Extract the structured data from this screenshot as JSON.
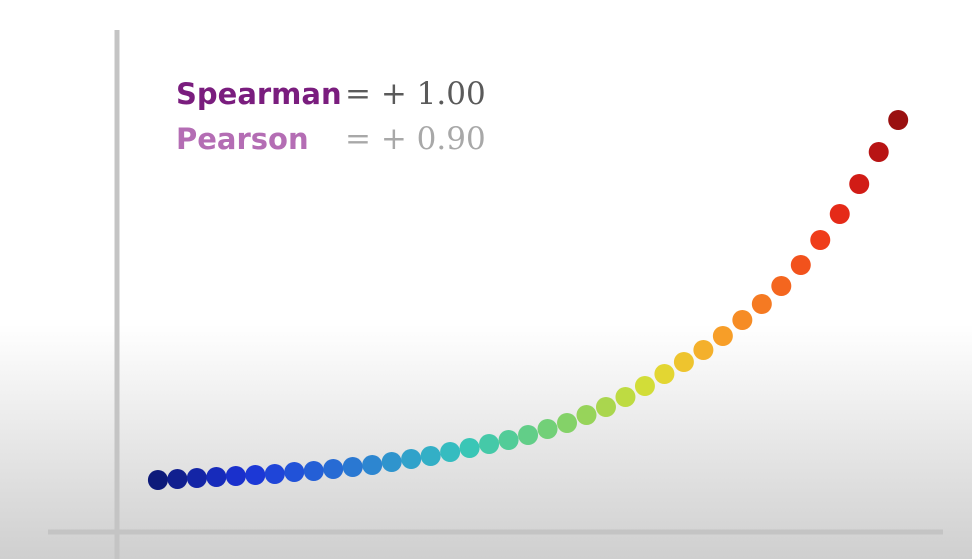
{
  "chart_data": {
    "type": "scatter",
    "annotations": [
      {
        "label": "Spearman",
        "text": "= + 1.00",
        "label_color": "#7a1d7e",
        "text_color": "#5a5a5a"
      },
      {
        "label": "Pearson",
        "text": "= + 0.90",
        "label_color": "#b46db4",
        "text_color": "#a8a8a8"
      }
    ],
    "x": [
      0,
      1,
      2,
      3,
      4,
      5,
      6,
      7,
      8,
      9,
      10,
      11,
      12,
      13,
      14,
      15,
      16,
      17,
      18,
      19,
      20,
      21,
      22,
      23,
      24,
      25,
      26,
      27,
      28,
      29,
      30,
      31,
      32,
      33,
      34,
      35,
      36,
      37,
      38
    ],
    "values": [
      52,
      53,
      54,
      55,
      56,
      57,
      58,
      60,
      61,
      63,
      65,
      67,
      70,
      73,
      76,
      80,
      84,
      88,
      92,
      97,
      103,
      109,
      117,
      125,
      135,
      146,
      158,
      170,
      182,
      196,
      212,
      228,
      246,
      267,
      292,
      318,
      348,
      380,
      412
    ],
    "colors": [
      "#0d1a7a",
      "#111f8f",
      "#1425a6",
      "#172bbb",
      "#1a30cc",
      "#1c38d6",
      "#1f45d8",
      "#2152d8",
      "#245fd6",
      "#276bd4",
      "#2a78d2",
      "#2d86d0",
      "#2f94cd",
      "#31a2ca",
      "#33afc6",
      "#35bcc0",
      "#3ac6b6",
      "#45c9a8",
      "#52cc98",
      "#62ce88",
      "#72d078",
      "#84d268",
      "#97d45a",
      "#aad64e",
      "#bedb42",
      "#d2dd38",
      "#e3d632",
      "#eec42e",
      "#f4b02b",
      "#f79e28",
      "#f68c25",
      "#f57a22",
      "#f4661f",
      "#f2521c",
      "#ef3d1a",
      "#e52a18",
      "#d11c16",
      "#b81414",
      "#9a1010"
    ],
    "xlim": [
      -2.1,
      40.3
    ],
    "ylim": [
      0,
      502
    ],
    "axis_color": "#c4c4c4"
  }
}
